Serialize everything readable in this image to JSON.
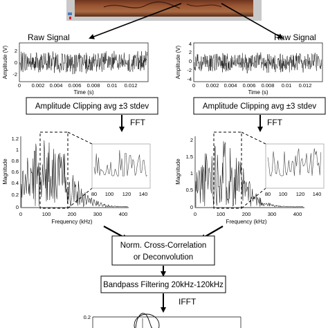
{
  "top_panel": {
    "description_free": true
  },
  "left_column": {
    "raw_signal_label": "Raw Signal",
    "raw_plot": {
      "ylabel": "Amplitude (V)",
      "xlabel": "Time (s)",
      "yticks": [
        "2",
        "0",
        "-2"
      ],
      "xticks": [
        "0",
        "0.002",
        "0.004",
        "0.006",
        "0.008",
        "0.01",
        "0.012"
      ]
    },
    "clip_box": "Amplitude Clipping avg ±3 stdev",
    "fft_label": "FFT",
    "fft_plot": {
      "ylabel": "Magnitude",
      "xlabel": "Frequency (kHz)",
      "yticks": [
        "1.2",
        "1",
        "0.8",
        "0.6",
        "0.4",
        "0.2",
        "0"
      ],
      "xticks": [
        "0",
        "100",
        "200",
        "300",
        "400"
      ],
      "inset_xticks": [
        "80",
        "100",
        "120",
        "140"
      ]
    }
  },
  "right_column": {
    "raw_signal_label": "Raw Signal",
    "raw_plot": {
      "ylabel": "Amplitude (V)",
      "xlabel": "Time (s)",
      "yticks": [
        "4",
        "2",
        "0",
        "-2",
        "-4"
      ],
      "xticks": [
        "0",
        "0.002",
        "0.004",
        "0.006",
        "0.008",
        "0.01",
        "0.012"
      ]
    },
    "clip_box": "Amplitude Clipping avg ±3 stdev",
    "fft_label": "FFT",
    "fft_plot": {
      "ylabel": "Magnitude",
      "xlabel": "Frequency (kHz)",
      "yticks": [
        "2",
        "1.5",
        "1",
        "0.5",
        "0"
      ],
      "xticks": [
        "0",
        "100",
        "200",
        "300",
        "400"
      ],
      "inset_xticks": [
        "80",
        "100",
        "120",
        "140"
      ]
    }
  },
  "xcorr_box_line1": "Norm. Cross-Correlation",
  "xcorr_box_line2": "or Deconvolution",
  "bandpass_box": "Bandpass Filtering 20kHz-120kHz",
  "ifft_label": "IFFT",
  "bottom_plot": {
    "ytick_top": "0.2"
  },
  "colors": {
    "wood": "#8b4a2b",
    "wood_dark": "#5a2c18",
    "frame": "#bfbfbf",
    "marker": "#d62020"
  }
}
